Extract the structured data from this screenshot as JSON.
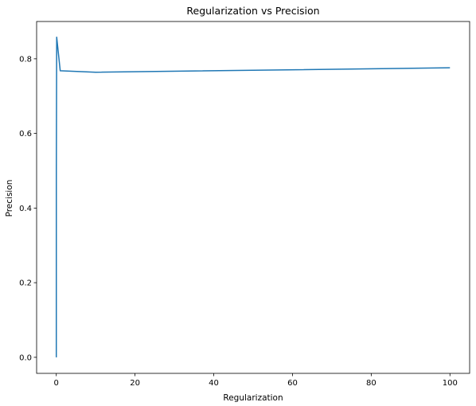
{
  "chart_data": {
    "type": "line",
    "title": "Regularization vs Precision",
    "xlabel": "Regularization",
    "ylabel": "Precision",
    "xlim": [
      -5,
      105
    ],
    "ylim": [
      -0.043,
      0.9
    ],
    "xticks": [
      0,
      20,
      40,
      60,
      80,
      100
    ],
    "yticks": [
      0.0,
      0.2,
      0.4,
      0.6,
      0.8
    ],
    "grid": false,
    "series": [
      {
        "color": "#1f77b4",
        "x": [
          0.001,
          0.01,
          0.1,
          1,
          10,
          100
        ],
        "y": [
          0.0,
          0.5,
          0.858,
          0.768,
          0.764,
          0.776
        ]
      }
    ]
  }
}
